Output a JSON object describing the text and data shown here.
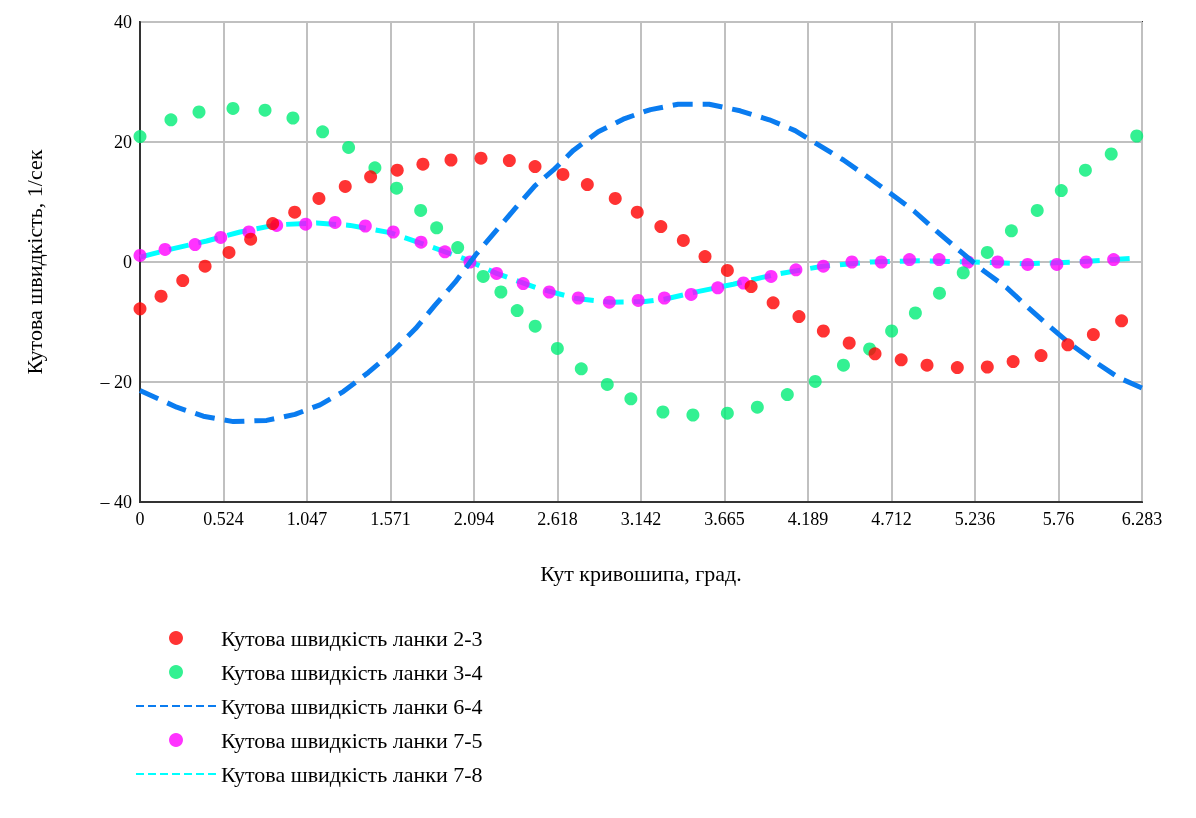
{
  "chart_data": {
    "type": "line",
    "xlabel": "Кут кривошипа, град.",
    "ylabel": "Кутова швидкість, 1/сек",
    "xlim": [
      0,
      6.283
    ],
    "xticks": [
      0,
      0.524,
      1.047,
      1.571,
      2.094,
      2.618,
      3.142,
      3.665,
      4.189,
      4.712,
      5.236,
      5.76,
      6.283
    ],
    "ylim": [
      -40,
      40
    ],
    "yticks": [
      {
        "value": -40,
        "label": "– 40"
      },
      {
        "value": -20,
        "label": "– 20"
      },
      0,
      20,
      40
    ],
    "grid": true,
    "legend": "bottom",
    "series": [
      {
        "name": "Кутова швидкість ланки 2-3",
        "type": "scatter",
        "marker": "circle",
        "color": "#ff0000",
        "x": [
          0,
          0.132,
          0.268,
          0.408,
          0.558,
          0.694,
          0.832,
          0.97,
          1.122,
          1.287,
          1.446,
          1.613,
          1.774,
          1.95,
          2.138,
          2.316,
          2.477,
          2.652,
          2.805,
          2.98,
          3.118,
          3.266,
          3.407,
          3.543,
          3.683,
          3.832,
          3.97,
          4.132,
          4.285,
          4.447,
          4.609,
          4.773,
          4.935,
          5.125,
          5.313,
          5.475,
          5.65,
          5.818,
          5.978,
          6.155
        ],
        "values": [
          -7.8,
          -5.7,
          -3.1,
          -0.7,
          1.6,
          3.8,
          6.4,
          8.3,
          10.6,
          12.6,
          14.2,
          15.3,
          16.3,
          17,
          17.3,
          16.9,
          15.9,
          14.6,
          12.9,
          10.6,
          8.3,
          5.9,
          3.6,
          0.9,
          -1.4,
          -4.1,
          -6.8,
          -9.1,
          -11.5,
          -13.5,
          -15.3,
          -16.3,
          -17.2,
          -17.6,
          -17.5,
          -16.6,
          -15.6,
          -13.8,
          -12.1,
          -9.8
        ]
      },
      {
        "name": "Кутова швидкість ланки 3-4",
        "type": "scatter",
        "marker": "circle",
        "color": "#00ee77",
        "x": [
          0,
          0.194,
          0.37,
          0.583,
          0.784,
          0.959,
          1.145,
          1.308,
          1.473,
          1.609,
          1.76,
          1.86,
          1.992,
          2.152,
          2.263,
          2.365,
          2.478,
          2.617,
          2.767,
          2.93,
          3.078,
          3.279,
          3.467,
          3.683,
          3.871,
          4.059,
          4.234,
          4.411,
          4.575,
          4.713,
          4.862,
          5.013,
          5.162,
          5.313,
          5.464,
          5.626,
          5.777,
          5.928,
          6.09,
          6.25
        ],
        "values": [
          20.9,
          23.7,
          25,
          25.6,
          25.3,
          24,
          21.7,
          19.1,
          15.7,
          12.3,
          8.6,
          5.7,
          2.4,
          -2.4,
          -5,
          -8.1,
          -10.7,
          -14.4,
          -17.8,
          -20.4,
          -22.8,
          -25,
          -25.5,
          -25.2,
          -24.2,
          -22.1,
          -19.9,
          -17.2,
          -14.5,
          -11.5,
          -8.5,
          -5.2,
          -1.8,
          1.6,
          5.2,
          8.6,
          11.9,
          15.3,
          18,
          21
        ]
      },
      {
        "name": "Кутова швидкість ланки 6-4",
        "marker": "none",
        "line_style": "dashed",
        "color": "#0a7cf0",
        "x": [
          0,
          0.23,
          0.397,
          0.585,
          0.794,
          0.972,
          1.129,
          1.275,
          1.432,
          1.582,
          1.728,
          1.85,
          1.975,
          2.111,
          2.236,
          2.351,
          2.476,
          2.591,
          2.717,
          2.873,
          3.03,
          3.166,
          3.202,
          3.374,
          3.569,
          3.763,
          3.946,
          4.108,
          4.249,
          4.411,
          4.561,
          4.702,
          4.853,
          4.993,
          5.134,
          5.296,
          5.436,
          5.565,
          5.684,
          5.835,
          5.986,
          6.138,
          6.283
        ],
        "values": [
          -21.4,
          -24.2,
          -25.7,
          -26.6,
          -26.4,
          -25.4,
          -23.8,
          -21.6,
          -18.4,
          -15,
          -11.1,
          -7.2,
          -3.4,
          1.4,
          5.3,
          8.9,
          12.7,
          15.3,
          18.6,
          21.7,
          23.8,
          25.1,
          25.4,
          26.3,
          26.3,
          25.2,
          23.7,
          21.9,
          19.6,
          17,
          14.2,
          11.5,
          8.5,
          5.2,
          2,
          -1.6,
          -4.3,
          -7.5,
          -10.3,
          -13.7,
          -16.6,
          -19.3,
          -21
        ]
      },
      {
        "name": "Кутова швидкість ланки 7-5",
        "type": "scatter",
        "marker": "circle",
        "color": "#ff00ff",
        "x": [
          0,
          0.157,
          0.345,
          0.506,
          0.683,
          0.857,
          1.039,
          1.223,
          1.413,
          1.588,
          1.762,
          1.912,
          2.069,
          2.236,
          2.403,
          2.566,
          2.748,
          2.943,
          3.124,
          3.288,
          3.456,
          3.623,
          3.784,
          3.957,
          4.113,
          4.285,
          4.464,
          4.648,
          4.825,
          5.011,
          5.192,
          5.378,
          5.566,
          5.749,
          5.933,
          6.105
        ],
        "values": [
          1.1,
          2.1,
          2.9,
          4.1,
          5,
          6.1,
          6.3,
          6.6,
          6,
          5,
          3.3,
          1.7,
          0,
          -1.9,
          -3.6,
          -5,
          -6,
          -6.7,
          -6.4,
          -6,
          -5.4,
          -4.3,
          -3.5,
          -2.4,
          -1.3,
          -0.7,
          0,
          0,
          0.4,
          0.4,
          0,
          0,
          -0.4,
          -0.4,
          0,
          0.4
        ]
      },
      {
        "name": "Кутова швидкість ланки 7-8",
        "marker": "none",
        "line_style": "dashed",
        "color": "#00ffff",
        "x": [
          0,
          0.188,
          0.418,
          0.627,
          0.857,
          1.108,
          1.317,
          1.567,
          1.797,
          2.027,
          2.236,
          2.487,
          2.738,
          2.947,
          3.166,
          3.288,
          3.504,
          3.72,
          3.979,
          4.281,
          4.583,
          4.907,
          5.231,
          5.555,
          5.878,
          6.213
        ],
        "values": [
          0.8,
          2.1,
          3.5,
          5,
          6.2,
          6.5,
          6.1,
          4.9,
          2.8,
          0.6,
          -1.9,
          -4.3,
          -6.1,
          -6.7,
          -6.6,
          -6.2,
          -4.9,
          -3.7,
          -2.1,
          -0.7,
          0,
          0.2,
          0,
          -0.3,
          0,
          0.6
        ]
      }
    ]
  }
}
